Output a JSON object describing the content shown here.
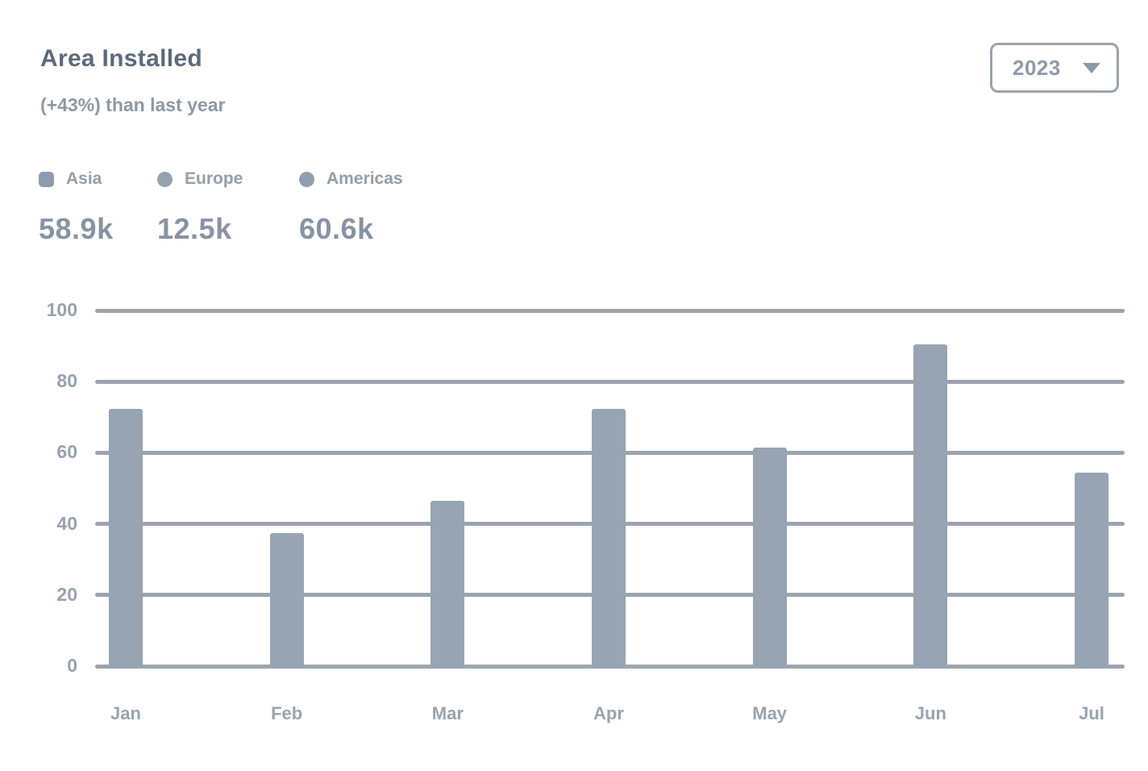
{
  "header": {
    "title": "Area Installed",
    "subtitle": "(+43%) than last year",
    "year_selector": {
      "value": "2023",
      "icon": "chevron-down-icon"
    }
  },
  "legend": {
    "items": [
      {
        "label": "Asia",
        "value": "58.9k",
        "marker_shape": "square",
        "marker_color": "#8d9cae"
      },
      {
        "label": "Europe",
        "value": "12.5k",
        "marker_shape": "circle",
        "marker_color": "#95a2b1"
      },
      {
        "label": "Americas",
        "value": "60.6k",
        "marker_shape": "circle",
        "marker_color": "#909fb0"
      }
    ]
  },
  "chart_data": {
    "type": "bar",
    "title": "Area Installed",
    "subtitle": "(+43%) than last year",
    "categories": [
      "Jan",
      "Feb",
      "Mar",
      "Apr",
      "May",
      "Jun",
      "Jul"
    ],
    "values": [
      73,
      38,
      47,
      73,
      62,
      91,
      55
    ],
    "xlabel": "",
    "ylabel": "",
    "ylim": [
      0,
      100
    ],
    "yticks": [
      0,
      20,
      40,
      60,
      80,
      100
    ],
    "grid": "horizontal",
    "legend_position": "top-left",
    "legend_entries": [
      "Asia",
      "Europe",
      "Americas"
    ],
    "bar_color": "#97a4b3"
  },
  "colors": {
    "background": "#ffffff",
    "title_text": "#5d6a7b",
    "subtitle_text": "#8e98a6",
    "legend_label": "#949ea9",
    "legend_value": "#8893a2",
    "axis_label": "#98a2ad",
    "gridline": "#9ba4ae",
    "bar": "#97a4b3",
    "dropdown_border": "#99a3af",
    "dropdown_text": "#8e99a8"
  }
}
